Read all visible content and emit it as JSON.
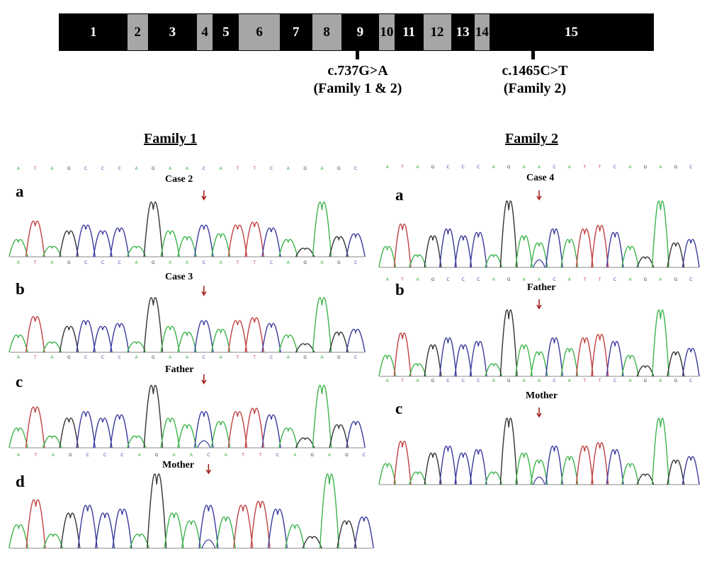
{
  "exons": [
    {
      "label": "1",
      "shade": "dark"
    },
    {
      "label": "2",
      "shade": "light"
    },
    {
      "label": "3",
      "shade": "dark"
    },
    {
      "label": "4",
      "shade": "light"
    },
    {
      "label": "5",
      "shade": "dark"
    },
    {
      "label": "6",
      "shade": "light"
    },
    {
      "label": "7",
      "shade": "dark"
    },
    {
      "label": "8",
      "shade": "light"
    },
    {
      "label": "9",
      "shade": "dark"
    },
    {
      "label": "10",
      "shade": "light"
    },
    {
      "label": "11",
      "shade": "dark"
    },
    {
      "label": "12",
      "shade": "light"
    },
    {
      "label": "13",
      "shade": "dark"
    },
    {
      "label": "14",
      "shade": "light"
    },
    {
      "label": "15",
      "shade": "dark"
    }
  ],
  "mutations": [
    {
      "name": "c.737G>A",
      "families": "(Family 1 & 2)"
    },
    {
      "name": "c.1465C>T",
      "families": "(Family 2)"
    }
  ],
  "family1": {
    "title": "Family 1",
    "panels": [
      {
        "letter": "a",
        "sample": "Case 2"
      },
      {
        "letter": "b",
        "sample": "Case 3"
      },
      {
        "letter": "c",
        "sample": "Father"
      },
      {
        "letter": "d",
        "sample": "Mother"
      }
    ]
  },
  "family2": {
    "title": "Family 2",
    "panels": [
      {
        "letter": "a",
        "sample": "Case 4"
      },
      {
        "letter": "b",
        "sample": "Father"
      },
      {
        "letter": "c",
        "sample": "Mother"
      }
    ]
  },
  "sequence": "ATAGCCCAGAACATTCAGAGC",
  "sequence_f2": "ATAGCCCAGAACATTCAGAGC",
  "colors": {
    "A": "#3cb44b",
    "C": "#3a3a9e",
    "G": "#333333",
    "T": "#c04040",
    "arrow": "#a01818",
    "light_exon": "#a6a6a6"
  }
}
